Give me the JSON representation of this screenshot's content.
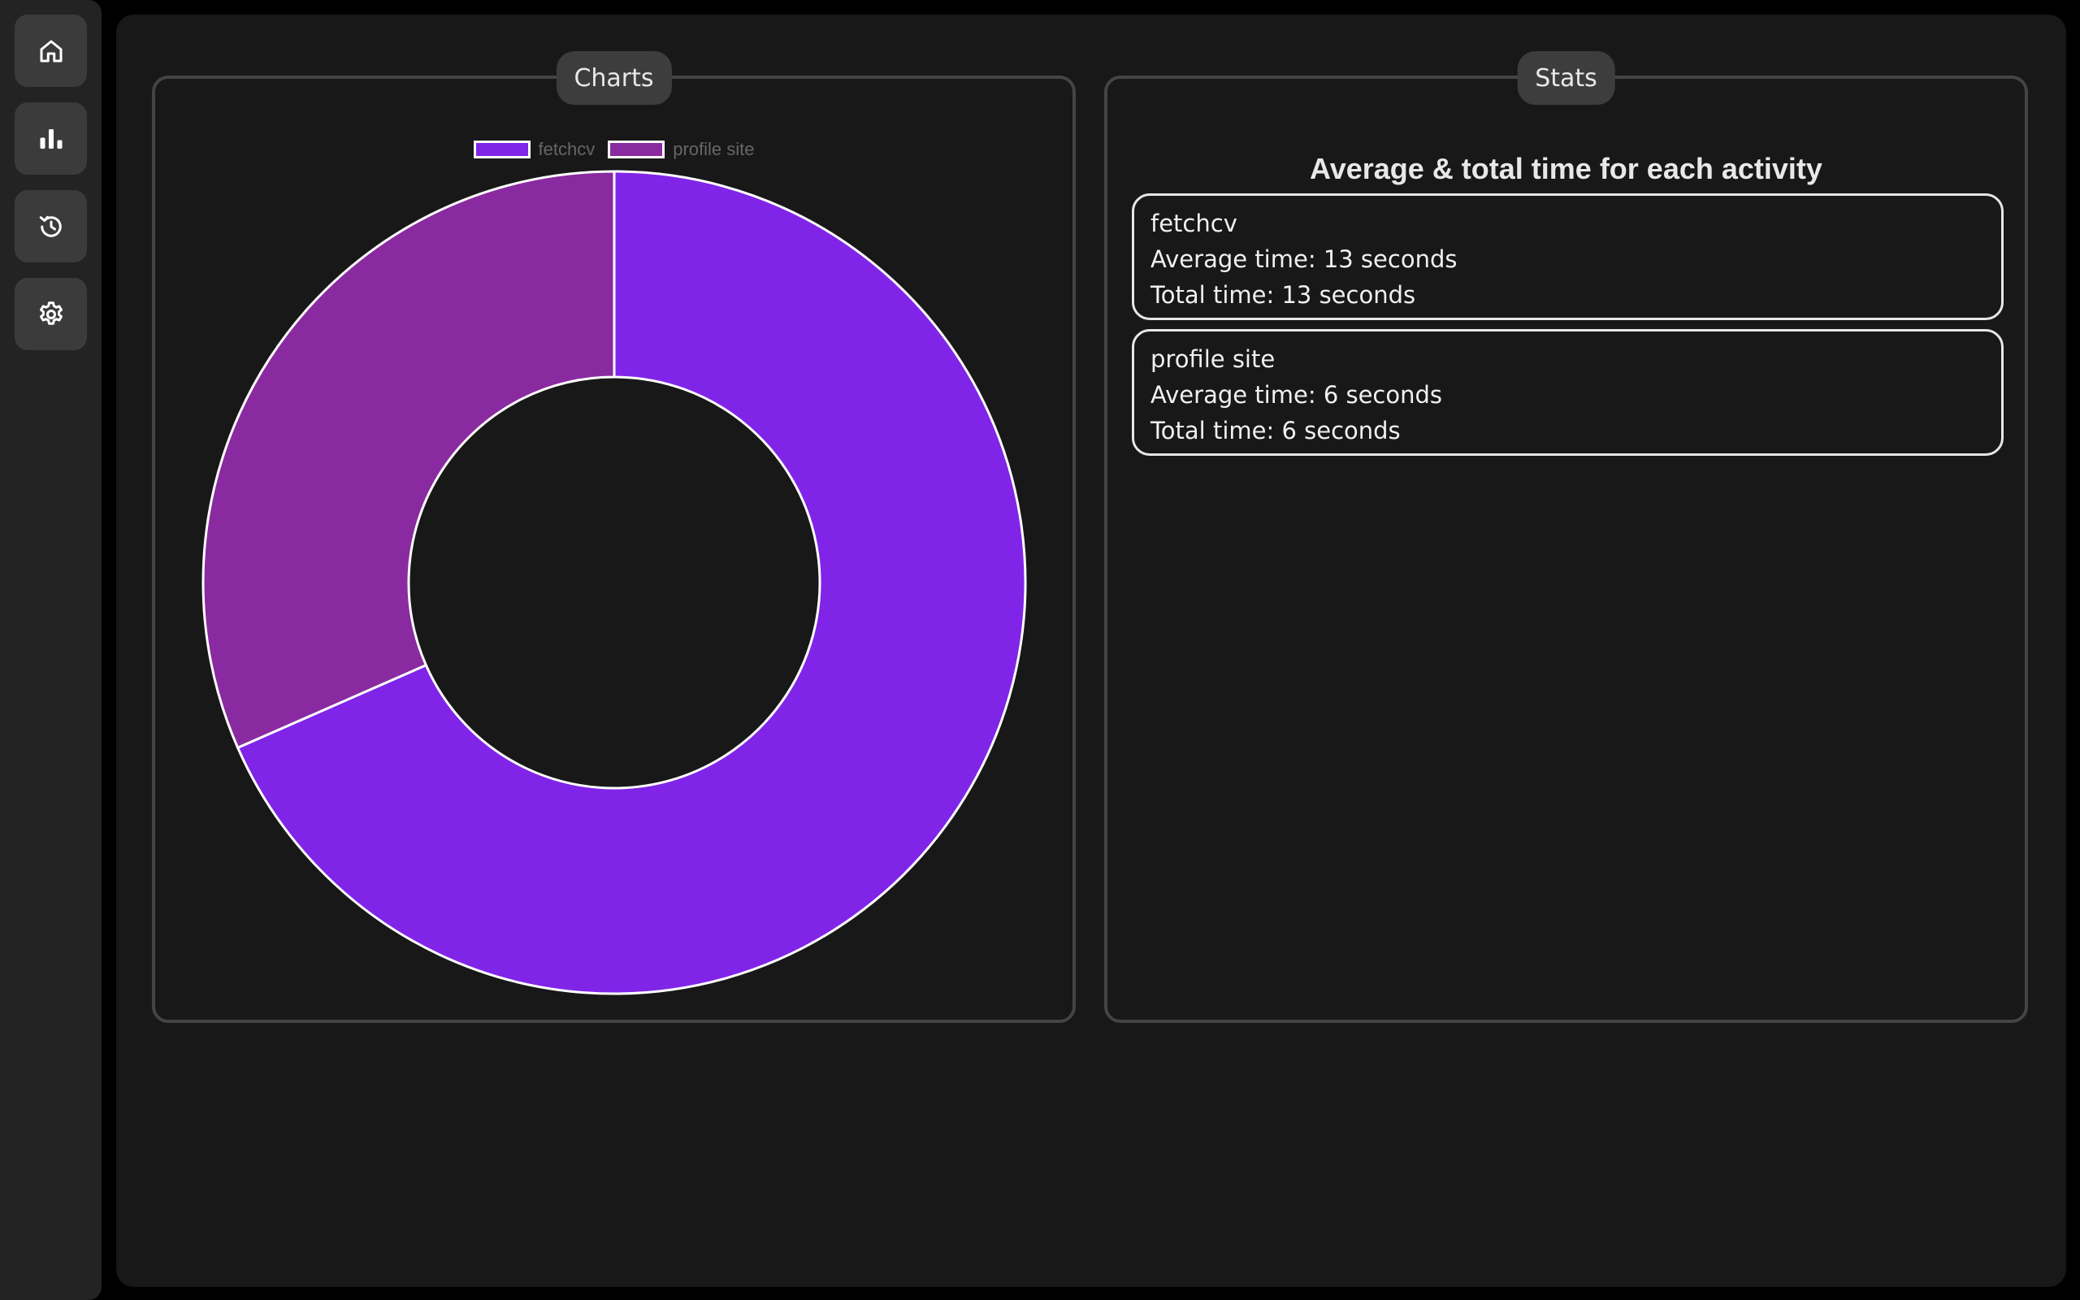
{
  "sidebar": {
    "items": [
      {
        "name": "home",
        "icon": "home-icon"
      },
      {
        "name": "charts",
        "icon": "bar-chart-icon"
      },
      {
        "name": "history",
        "icon": "history-icon"
      },
      {
        "name": "settings",
        "icon": "gear-icon"
      }
    ]
  },
  "charts_panel": {
    "title": "Charts"
  },
  "stats_panel": {
    "title": "Stats",
    "heading": "Average & total time for each activity",
    "activities": [
      {
        "name": "fetchcv",
        "average": "Average time: 13 seconds",
        "total": "Total time: 13 seconds"
      },
      {
        "name": "profile site",
        "average": "Average time: 6 seconds",
        "total": "Total time: 6 seconds"
      }
    ]
  },
  "chart_data": {
    "type": "pie",
    "variant": "doughnut",
    "categories": [
      "fetchcv",
      "profile site"
    ],
    "values": [
      13,
      6
    ],
    "colors": [
      "#8025e8",
      "#8a2aa0"
    ],
    "legend": "top-center"
  }
}
